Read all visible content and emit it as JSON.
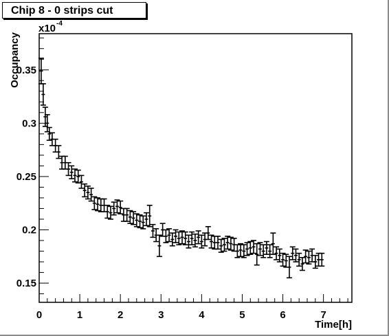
{
  "chart_data": {
    "type": "scatter",
    "title": "Chip 8 - 0 strips cut",
    "xlabel": "Time[h]",
    "ylabel": "Occupancy",
    "y_exponent_base": "x10",
    "y_exponent_power": "-4",
    "xlim": [
      0,
      7.7
    ],
    "ylim": [
      0.132,
      0.384
    ],
    "x_ticks": [
      0,
      1,
      2,
      3,
      4,
      5,
      6,
      7
    ],
    "x_tick_labels": [
      "0",
      "1",
      "2",
      "3",
      "4",
      "5",
      "6",
      "7"
    ],
    "y_ticks": [
      0.15,
      0.2,
      0.25,
      0.3,
      0.35
    ],
    "y_tick_labels": [
      "0.15",
      "0.2",
      "0.25",
      "0.3",
      "0.35"
    ],
    "grid": false,
    "legend": "none",
    "marker_color": "#000000",
    "points": [
      [
        0.05,
        0.349,
        0.012
      ],
      [
        0.1,
        0.327,
        0.01
      ],
      [
        0.15,
        0.306,
        0.009
      ],
      [
        0.2,
        0.3,
        0.008
      ],
      [
        0.25,
        0.29,
        0.006
      ],
      [
        0.32,
        0.285,
        0.006
      ],
      [
        0.4,
        0.279,
        0.006
      ],
      [
        0.48,
        0.273,
        0.006
      ],
      [
        0.56,
        0.263,
        0.006
      ],
      [
        0.64,
        0.263,
        0.006
      ],
      [
        0.72,
        0.257,
        0.006
      ],
      [
        0.8,
        0.254,
        0.006
      ],
      [
        0.88,
        0.251,
        0.006
      ],
      [
        0.96,
        0.25,
        0.006
      ],
      [
        1.04,
        0.245,
        0.006
      ],
      [
        1.12,
        0.237,
        0.006
      ],
      [
        1.2,
        0.235,
        0.006
      ],
      [
        1.28,
        0.233,
        0.006
      ],
      [
        1.36,
        0.225,
        0.006
      ],
      [
        1.44,
        0.224,
        0.006
      ],
      [
        1.52,
        0.223,
        0.006
      ],
      [
        1.6,
        0.223,
        0.006
      ],
      [
        1.68,
        0.217,
        0.006
      ],
      [
        1.76,
        0.216,
        0.006
      ],
      [
        1.84,
        0.22,
        0.006
      ],
      [
        1.92,
        0.222,
        0.006
      ],
      [
        2.0,
        0.221,
        0.006
      ],
      [
        2.08,
        0.214,
        0.006
      ],
      [
        2.16,
        0.214,
        0.006
      ],
      [
        2.24,
        0.212,
        0.006
      ],
      [
        2.32,
        0.211,
        0.006
      ],
      [
        2.4,
        0.209,
        0.006
      ],
      [
        2.48,
        0.208,
        0.006
      ],
      [
        2.56,
        0.207,
        0.006
      ],
      [
        2.64,
        0.21,
        0.006
      ],
      [
        2.72,
        0.213,
        0.01
      ],
      [
        2.8,
        0.199,
        0.006
      ],
      [
        2.88,
        0.195,
        0.006
      ],
      [
        2.96,
        0.185,
        0.01
      ],
      [
        3.04,
        0.2,
        0.006
      ],
      [
        3.12,
        0.194,
        0.006
      ],
      [
        3.2,
        0.195,
        0.006
      ],
      [
        3.28,
        0.191,
        0.006
      ],
      [
        3.36,
        0.194,
        0.006
      ],
      [
        3.44,
        0.192,
        0.006
      ],
      [
        3.52,
        0.193,
        0.006
      ],
      [
        3.6,
        0.192,
        0.006
      ],
      [
        3.68,
        0.189,
        0.006
      ],
      [
        3.76,
        0.192,
        0.006
      ],
      [
        3.84,
        0.19,
        0.006
      ],
      [
        3.92,
        0.193,
        0.006
      ],
      [
        4.0,
        0.189,
        0.006
      ],
      [
        4.08,
        0.191,
        0.006
      ],
      [
        4.16,
        0.197,
        0.006
      ],
      [
        4.24,
        0.189,
        0.006
      ],
      [
        4.32,
        0.188,
        0.006
      ],
      [
        4.4,
        0.188,
        0.006
      ],
      [
        4.48,
        0.185,
        0.006
      ],
      [
        4.56,
        0.186,
        0.006
      ],
      [
        4.64,
        0.188,
        0.006
      ],
      [
        4.72,
        0.187,
        0.006
      ],
      [
        4.8,
        0.186,
        0.006
      ],
      [
        4.88,
        0.18,
        0.006
      ],
      [
        4.96,
        0.181,
        0.006
      ],
      [
        5.04,
        0.18,
        0.006
      ],
      [
        5.12,
        0.182,
        0.006
      ],
      [
        5.2,
        0.183,
        0.006
      ],
      [
        5.28,
        0.184,
        0.006
      ],
      [
        5.36,
        0.177,
        0.01
      ],
      [
        5.44,
        0.182,
        0.006
      ],
      [
        5.52,
        0.18,
        0.006
      ],
      [
        5.6,
        0.183,
        0.006
      ],
      [
        5.68,
        0.18,
        0.006
      ],
      [
        5.76,
        0.187,
        0.01
      ],
      [
        5.84,
        0.178,
        0.006
      ],
      [
        5.92,
        0.176,
        0.006
      ],
      [
        6.0,
        0.172,
        0.006
      ],
      [
        6.08,
        0.171,
        0.006
      ],
      [
        6.16,
        0.165,
        0.01
      ],
      [
        6.24,
        0.178,
        0.006
      ],
      [
        6.32,
        0.176,
        0.006
      ],
      [
        6.4,
        0.172,
        0.006
      ],
      [
        6.48,
        0.168,
        0.006
      ],
      [
        6.56,
        0.175,
        0.006
      ],
      [
        6.64,
        0.174,
        0.006
      ],
      [
        6.72,
        0.176,
        0.006
      ],
      [
        6.8,
        0.17,
        0.006
      ],
      [
        6.88,
        0.172,
        0.006
      ],
      [
        6.96,
        0.172,
        0.006
      ]
    ]
  }
}
